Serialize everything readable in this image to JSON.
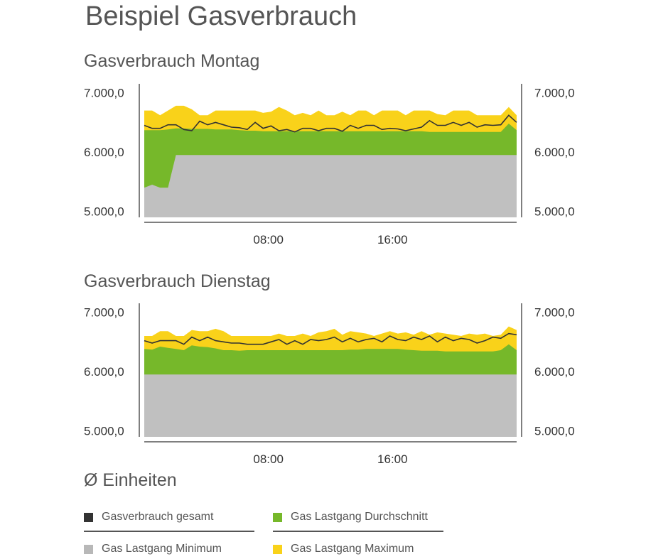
{
  "title": "Beispiel Gasverbrauch",
  "legend_title": "Ø Einheiten",
  "colors": {
    "gesamt": "#333333",
    "durchschnitt": "#76b82a",
    "minimum": "#c0c0c0",
    "maximum": "#f9d21a"
  },
  "legend": [
    {
      "label": "Gasverbrauch gesamt",
      "key": "gesamt"
    },
    {
      "label": "Gas Lastgang Durchschnitt",
      "key": "durchschnitt"
    },
    {
      "label": "Gas Lastgang Minimum",
      "key": "minimum"
    },
    {
      "label": "Gas Lastgang Maximum",
      "key": "maximum"
    }
  ],
  "chart_data": [
    {
      "type": "area",
      "title": "Gasverbrauch Montag",
      "y_ticks": [
        "7.000,0",
        "6.000,0",
        "5.000,0"
      ],
      "y_tick_values": [
        7000,
        6000,
        5000
      ],
      "ylim": [
        4900,
        7150
      ],
      "x_ticks": [
        "08:00",
        "16:00"
      ],
      "x_tick_hours": [
        8,
        16
      ],
      "xlim": [
        0,
        24
      ],
      "series": {
        "maximum": [
          6700,
          6700,
          6620,
          6700,
          6780,
          6780,
          6720,
          6620,
          6620,
          6700,
          6700,
          6700,
          6700,
          6700,
          6700,
          6660,
          6680,
          6760,
          6700,
          6620,
          6660,
          6620,
          6700,
          6620,
          6620,
          6680,
          6620,
          6700,
          6700,
          6620,
          6700,
          6700,
          6700,
          6620,
          6700,
          6700,
          6700,
          6640,
          6620,
          6700,
          6700,
          6700,
          6620,
          6620,
          6620,
          6620,
          6760,
          6620
        ],
        "durchschnitt": [
          6370,
          6370,
          6370,
          6380,
          6400,
          6400,
          6390,
          6390,
          6390,
          6380,
          6380,
          6380,
          6370,
          6360,
          6360,
          6350,
          6350,
          6350,
          6350,
          6350,
          6350,
          6350,
          6350,
          6350,
          6350,
          6350,
          6350,
          6350,
          6350,
          6350,
          6350,
          6350,
          6350,
          6350,
          6350,
          6350,
          6340,
          6340,
          6340,
          6340,
          6340,
          6340,
          6340,
          6340,
          6340,
          6340,
          6480,
          6370
        ],
        "minimum": [
          5400,
          5450,
          5400,
          5400,
          5950,
          5950,
          5950,
          5950,
          5950,
          5950,
          5950,
          5950,
          5950,
          5950,
          5950,
          5950,
          5950,
          5950,
          5950,
          5950,
          5950,
          5950,
          5950,
          5950,
          5950,
          5950,
          5950,
          5950,
          5950,
          5950,
          5950,
          5950,
          5950,
          5950,
          5950,
          5950,
          5950,
          5950,
          5950,
          5950,
          5950,
          5950,
          5950,
          5950,
          5950,
          5950,
          5950,
          5950
        ],
        "gesamt": [
          6450,
          6400,
          6400,
          6460,
          6460,
          6380,
          6360,
          6520,
          6460,
          6500,
          6460,
          6420,
          6410,
          6380,
          6500,
          6400,
          6440,
          6360,
          6380,
          6340,
          6400,
          6400,
          6360,
          6400,
          6400,
          6350,
          6450,
          6400,
          6450,
          6450,
          6380,
          6400,
          6390,
          6360,
          6390,
          6420,
          6530,
          6450,
          6450,
          6500,
          6450,
          6500,
          6420,
          6460,
          6450,
          6460,
          6620,
          6500
        ]
      }
    },
    {
      "type": "area",
      "title": "Gasverbrauch Dienstag",
      "y_ticks": [
        "7.000,0",
        "6.000,0",
        "5.000,0"
      ],
      "y_tick_values": [
        7000,
        6000,
        5000
      ],
      "ylim": [
        4900,
        7150
      ],
      "x_ticks": [
        "08:00",
        "16:00"
      ],
      "x_tick_hours": [
        8,
        16
      ],
      "xlim": [
        0,
        24
      ],
      "series": {
        "maximum": [
          6600,
          6600,
          6680,
          6680,
          6600,
          6600,
          6700,
          6680,
          6680,
          6720,
          6680,
          6600,
          6600,
          6600,
          6600,
          6600,
          6600,
          6640,
          6600,
          6600,
          6640,
          6600,
          6660,
          6680,
          6720,
          6620,
          6680,
          6660,
          6640,
          6600,
          6640,
          6680,
          6640,
          6660,
          6620,
          6680,
          6620,
          6660,
          6640,
          6620,
          6600,
          6640,
          6620,
          6640,
          6600,
          6620,
          6760,
          6700
        ],
        "durchschnitt": [
          6380,
          6370,
          6420,
          6400,
          6380,
          6360,
          6440,
          6420,
          6410,
          6390,
          6360,
          6360,
          6350,
          6360,
          6360,
          6360,
          6360,
          6360,
          6360,
          6360,
          6360,
          6360,
          6360,
          6360,
          6360,
          6360,
          6370,
          6370,
          6380,
          6380,
          6380,
          6380,
          6380,
          6370,
          6360,
          6350,
          6350,
          6350,
          6340,
          6340,
          6340,
          6340,
          6340,
          6340,
          6340,
          6360,
          6460,
          6360
        ],
        "minimum": [
          5950,
          5950,
          5950,
          5950,
          5950,
          5950,
          5950,
          5950,
          5950,
          5950,
          5950,
          5950,
          5950,
          5950,
          5950,
          5950,
          5950,
          5950,
          5950,
          5950,
          5950,
          5950,
          5950,
          5950,
          5950,
          5950,
          5950,
          5950,
          5950,
          5950,
          5950,
          5950,
          5950,
          5950,
          5950,
          5950,
          5950,
          5950,
          5950,
          5950,
          5950,
          5950,
          5950,
          5950,
          5950,
          5950,
          5950,
          5950
        ],
        "gesamt": [
          6520,
          6480,
          6520,
          6520,
          6520,
          6460,
          6580,
          6520,
          6580,
          6520,
          6500,
          6480,
          6480,
          6460,
          6460,
          6460,
          6500,
          6540,
          6460,
          6520,
          6460,
          6540,
          6520,
          6540,
          6580,
          6500,
          6560,
          6500,
          6540,
          6560,
          6500,
          6600,
          6540,
          6520,
          6580,
          6540,
          6600,
          6500,
          6580,
          6520,
          6560,
          6540,
          6480,
          6520,
          6580,
          6560,
          6640,
          6620
        ]
      }
    }
  ]
}
